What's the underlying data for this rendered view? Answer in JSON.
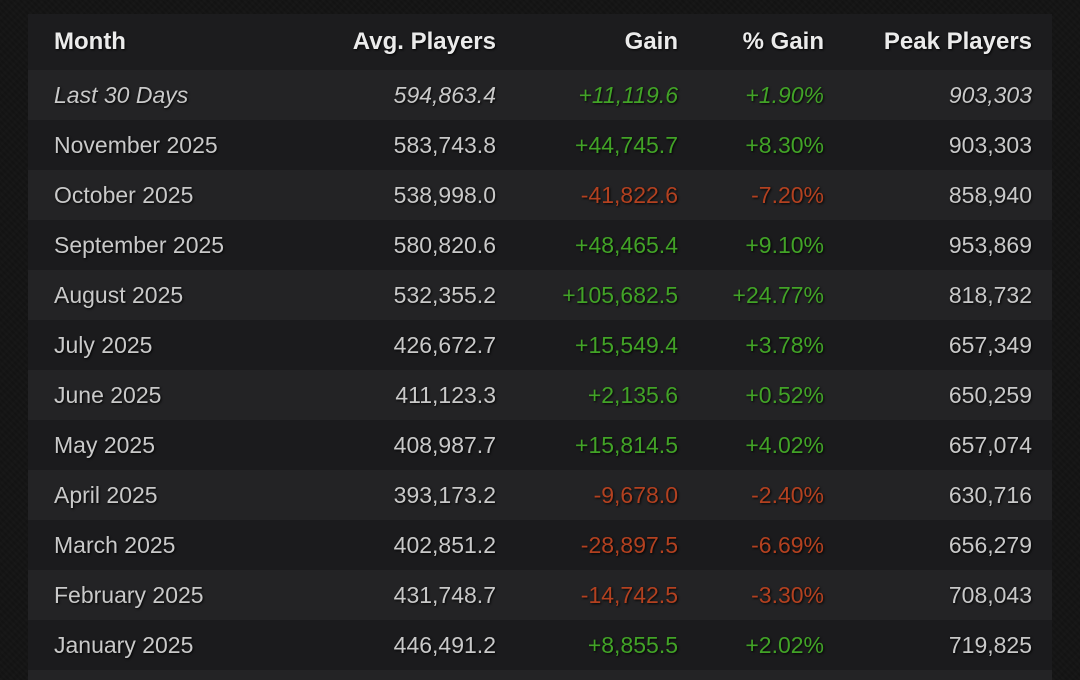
{
  "table": {
    "columns": [
      {
        "label": "Month",
        "align": "left"
      },
      {
        "label": "Avg. Players",
        "align": "right"
      },
      {
        "label": "Gain",
        "align": "right"
      },
      {
        "label": "% Gain",
        "align": "right"
      },
      {
        "label": "Peak Players",
        "align": "right"
      }
    ],
    "rows": [
      {
        "month": "Last 30 Days",
        "avg_players": "594,863.4",
        "gain": "+11,119.6",
        "pct_gain": "+1.90%",
        "peak_players": "903,303",
        "trend": "up",
        "italic": true
      },
      {
        "month": "November 2025",
        "avg_players": "583,743.8",
        "gain": "+44,745.7",
        "pct_gain": "+8.30%",
        "peak_players": "903,303",
        "trend": "up",
        "italic": false
      },
      {
        "month": "October 2025",
        "avg_players": "538,998.0",
        "gain": "-41,822.6",
        "pct_gain": "-7.20%",
        "peak_players": "858,940",
        "trend": "down",
        "italic": false
      },
      {
        "month": "September 2025",
        "avg_players": "580,820.6",
        "gain": "+48,465.4",
        "pct_gain": "+9.10%",
        "peak_players": "953,869",
        "trend": "up",
        "italic": false
      },
      {
        "month": "August 2025",
        "avg_players": "532,355.2",
        "gain": "+105,682.5",
        "pct_gain": "+24.77%",
        "peak_players": "818,732",
        "trend": "up",
        "italic": false
      },
      {
        "month": "July 2025",
        "avg_players": "426,672.7",
        "gain": "+15,549.4",
        "pct_gain": "+3.78%",
        "peak_players": "657,349",
        "trend": "up",
        "italic": false
      },
      {
        "month": "June 2025",
        "avg_players": "411,123.3",
        "gain": "+2,135.6",
        "pct_gain": "+0.52%",
        "peak_players": "650,259",
        "trend": "up",
        "italic": false
      },
      {
        "month": "May 2025",
        "avg_players": "408,987.7",
        "gain": "+15,814.5",
        "pct_gain": "+4.02%",
        "peak_players": "657,074",
        "trend": "up",
        "italic": false
      },
      {
        "month": "April 2025",
        "avg_players": "393,173.2",
        "gain": "-9,678.0",
        "pct_gain": "-2.40%",
        "peak_players": "630,716",
        "trend": "down",
        "italic": false
      },
      {
        "month": "March 2025",
        "avg_players": "402,851.2",
        "gain": "-28,897.5",
        "pct_gain": "-6.69%",
        "peak_players": "656,279",
        "trend": "down",
        "italic": false
      },
      {
        "month": "February 2025",
        "avg_players": "431,748.7",
        "gain": "-14,742.5",
        "pct_gain": "-3.30%",
        "peak_players": "708,043",
        "trend": "down",
        "italic": false
      },
      {
        "month": "January 2025",
        "avg_players": "446,491.2",
        "gain": "+8,855.5",
        "pct_gain": "+2.02%",
        "peak_players": "719,825",
        "trend": "up",
        "italic": false
      }
    ]
  },
  "colors": {
    "page_bg": "#131313",
    "header_bg": "#1c1c1e",
    "row_light": "#232325",
    "row_dark": "#1b1b1d",
    "text": "#c9c9c9",
    "header_text": "#ebebeb",
    "positive": "#42a327",
    "negative": "#b34120"
  }
}
